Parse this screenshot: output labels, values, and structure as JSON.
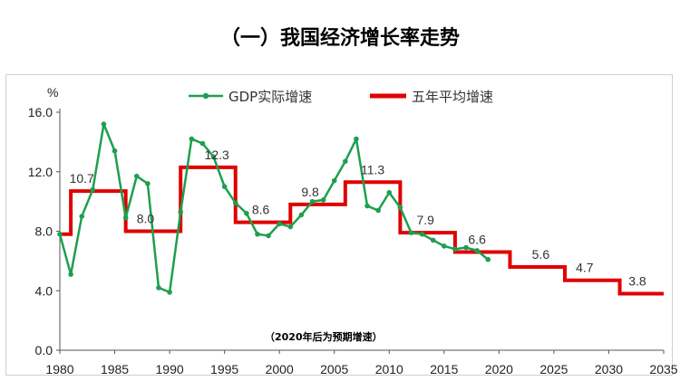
{
  "page_title": "（一）我国经济增长率走势",
  "colors": {
    "gdp": "#1e9f4e",
    "avg": "#e00000",
    "axis": "#555555"
  },
  "chart_data": {
    "type": "line",
    "title": "",
    "ylabel": "%",
    "xlabel": "",
    "xlim": [
      1980,
      2035
    ],
    "ylim": [
      0,
      16
    ],
    "x_ticks": [
      1980,
      1985,
      1990,
      1995,
      2000,
      2005,
      2010,
      2015,
      2020,
      2025,
      2030,
      2035
    ],
    "y_ticks": [
      "0.0",
      "4.0",
      "8.0",
      "12.0",
      "16.0"
    ],
    "y_tick_values": [
      0,
      4,
      8,
      12,
      16
    ],
    "legend": {
      "position": "top",
      "entries": [
        "GDP实际增速",
        "五年平均增速"
      ]
    },
    "note": "（2020年后为预期增速）",
    "series": [
      {
        "name": "GDP实际增速",
        "x": [
          1980,
          1981,
          1982,
          1983,
          1984,
          1985,
          1986,
          1987,
          1988,
          1989,
          1990,
          1991,
          1992,
          1993,
          1994,
          1995,
          1996,
          1997,
          1998,
          1999,
          2000,
          2001,
          2002,
          2003,
          2004,
          2005,
          2006,
          2007,
          2008,
          2009,
          2010,
          2011,
          2012,
          2013,
          2014,
          2015,
          2016,
          2017,
          2018,
          2019
        ],
        "y": [
          7.8,
          5.1,
          9.0,
          10.8,
          15.2,
          13.4,
          8.9,
          11.7,
          11.2,
          4.2,
          3.9,
          9.3,
          14.2,
          13.9,
          13.0,
          11.0,
          9.9,
          9.2,
          7.8,
          7.7,
          8.5,
          8.3,
          9.1,
          10.0,
          10.1,
          11.4,
          12.7,
          14.2,
          9.7,
          9.4,
          10.6,
          9.6,
          7.9,
          7.8,
          7.4,
          7.0,
          6.8,
          6.9,
          6.7,
          6.1
        ]
      },
      {
        "name": "五年平均增速",
        "segments": [
          {
            "x0": 1980,
            "x1": 1981,
            "y": 7.8
          },
          {
            "x0": 1981,
            "x1": 1986,
            "y": 10.7
          },
          {
            "x0": 1986,
            "x1": 1991,
            "y": 8.0
          },
          {
            "x0": 1991,
            "x1": 1996,
            "y": 12.3
          },
          {
            "x0": 1996,
            "x1": 2001,
            "y": 8.6
          },
          {
            "x0": 2001,
            "x1": 2006,
            "y": 9.8
          },
          {
            "x0": 2006,
            "x1": 2011,
            "y": 11.3
          },
          {
            "x0": 2011,
            "x1": 2016,
            "y": 7.9
          },
          {
            "x0": 2016,
            "x1": 2021,
            "y": 6.6
          },
          {
            "x0": 2021,
            "x1": 2026,
            "y": 5.6
          },
          {
            "x0": 2026,
            "x1": 2031,
            "y": 4.7
          },
          {
            "x0": 2031,
            "x1": 2035,
            "y": 3.8
          }
        ]
      }
    ],
    "annotations": [
      {
        "text": "10.7",
        "x": 1982.0,
        "y": 10.7
      },
      {
        "text": "8.0",
        "x": 1987.8,
        "y": 8.0
      },
      {
        "text": "12.3",
        "x": 1994.3,
        "y": 12.3
      },
      {
        "text": "8.6",
        "x": 1998.3,
        "y": 8.6
      },
      {
        "text": "9.8",
        "x": 2002.8,
        "y": 9.8
      },
      {
        "text": "11.3",
        "x": 2008.5,
        "y": 11.3
      },
      {
        "text": "7.9",
        "x": 2013.3,
        "y": 7.9
      },
      {
        "text": "6.6",
        "x": 2018.0,
        "y": 6.6
      },
      {
        "text": "5.6",
        "x": 2023.8,
        "y": 5.6
      },
      {
        "text": "4.7",
        "x": 2027.8,
        "y": 4.7
      },
      {
        "text": "3.8",
        "x": 2032.6,
        "y": 3.8
      }
    ]
  }
}
